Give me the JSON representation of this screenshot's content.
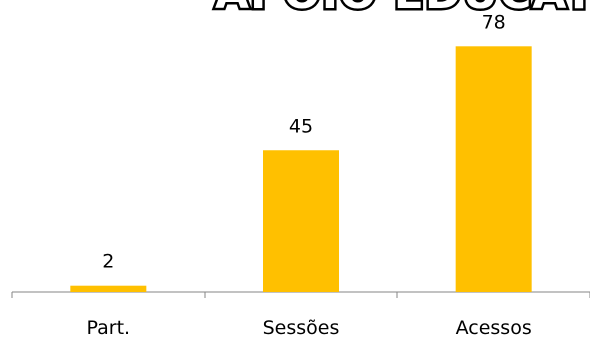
{
  "chart_data": {
    "type": "bar",
    "title": "APOIO EDUCATIVO",
    "categories": [
      "Part.",
      "Sessões",
      "Acessos"
    ],
    "values": [
      2,
      45,
      78
    ],
    "ylim": [
      0,
      80
    ],
    "grid": false,
    "legend": "none",
    "colors": {
      "bar": "#FFC000",
      "axis": "#868686"
    }
  }
}
